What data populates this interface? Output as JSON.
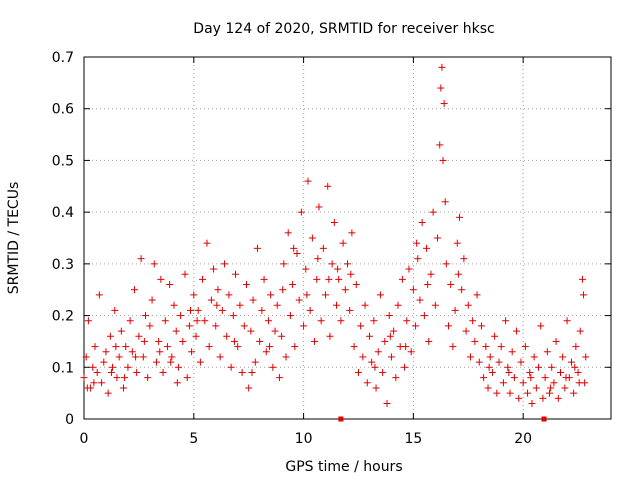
{
  "chart_data": {
    "type": "scatter",
    "title": "Day 124 of 2020, SRMTID for receiver hksc",
    "xlabel": "GPS time / hours",
    "ylabel": "SRMTID / TECUs",
    "xlim": [
      0,
      24
    ],
    "ylim": [
      0,
      0.7
    ],
    "xticks": [
      0,
      5,
      10,
      15,
      20
    ],
    "yticks": [
      0,
      0.1,
      0.2,
      0.3,
      0.4,
      0.5,
      0.6,
      0.7
    ],
    "grid": true,
    "marker": "+",
    "point_color": "#e00000",
    "axis_markers_x": [
      11.7,
      20.95
    ],
    "series": [
      {
        "name": "SRMTID",
        "points": [
          [
            0.0,
            0.08
          ],
          [
            0.1,
            0.12
          ],
          [
            0.2,
            0.19
          ],
          [
            0.3,
            0.06
          ],
          [
            0.4,
            0.1
          ],
          [
            0.5,
            0.14
          ],
          [
            0.6,
            0.09
          ],
          [
            0.7,
            0.24
          ],
          [
            0.8,
            0.07
          ],
          [
            0.9,
            0.11
          ],
          [
            1.0,
            0.13
          ],
          [
            1.1,
            0.05
          ],
          [
            1.2,
            0.16
          ],
          [
            1.3,
            0.1
          ],
          [
            1.4,
            0.21
          ],
          [
            1.5,
            0.08
          ],
          [
            1.6,
            0.12
          ],
          [
            1.7,
            0.17
          ],
          [
            1.8,
            0.06
          ],
          [
            1.9,
            0.14
          ],
          [
            2.0,
            0.1
          ],
          [
            2.1,
            0.19
          ],
          [
            2.2,
            0.13
          ],
          [
            2.3,
            0.25
          ],
          [
            2.4,
            0.09
          ],
          [
            2.5,
            0.16
          ],
          [
            2.6,
            0.31
          ],
          [
            2.7,
            0.12
          ],
          [
            2.8,
            0.2
          ],
          [
            2.9,
            0.08
          ],
          [
            3.0,
            0.18
          ],
          [
            3.1,
            0.23
          ],
          [
            3.2,
            0.3
          ],
          [
            3.3,
            0.11
          ],
          [
            3.4,
            0.15
          ],
          [
            3.5,
            0.27
          ],
          [
            3.6,
            0.09
          ],
          [
            3.7,
            0.19
          ],
          [
            3.8,
            0.14
          ],
          [
            3.9,
            0.26
          ],
          [
            4.0,
            0.12
          ],
          [
            4.1,
            0.22
          ],
          [
            4.2,
            0.17
          ],
          [
            4.3,
            0.1
          ],
          [
            4.4,
            0.2
          ],
          [
            4.5,
            0.15
          ],
          [
            4.6,
            0.28
          ],
          [
            4.7,
            0.08
          ],
          [
            4.8,
            0.18
          ],
          [
            4.9,
            0.13
          ],
          [
            5.0,
            0.24
          ],
          [
            5.1,
            0.16
          ],
          [
            5.2,
            0.21
          ],
          [
            5.3,
            0.11
          ],
          [
            5.4,
            0.27
          ],
          [
            5.5,
            0.19
          ],
          [
            5.6,
            0.34
          ],
          [
            5.7,
            0.14
          ],
          [
            5.8,
            0.23
          ],
          [
            5.9,
            0.29
          ],
          [
            6.0,
            0.18
          ],
          [
            6.1,
            0.25
          ],
          [
            6.2,
            0.12
          ],
          [
            6.3,
            0.21
          ],
          [
            6.4,
            0.3
          ],
          [
            6.5,
            0.16
          ],
          [
            6.6,
            0.24
          ],
          [
            6.7,
            0.1
          ],
          [
            6.8,
            0.2
          ],
          [
            6.9,
            0.28
          ],
          [
            7.0,
            0.14
          ],
          [
            7.1,
            0.22
          ],
          [
            7.2,
            0.09
          ],
          [
            7.3,
            0.18
          ],
          [
            7.4,
            0.26
          ],
          [
            7.5,
            0.06
          ],
          [
            7.6,
            0.17
          ],
          [
            7.7,
            0.23
          ],
          [
            7.8,
            0.11
          ],
          [
            7.9,
            0.33
          ],
          [
            8.0,
            0.15
          ],
          [
            8.1,
            0.21
          ],
          [
            8.2,
            0.27
          ],
          [
            8.3,
            0.13
          ],
          [
            8.4,
            0.19
          ],
          [
            8.5,
            0.24
          ],
          [
            8.6,
            0.1
          ],
          [
            8.7,
            0.17
          ],
          [
            8.8,
            0.22
          ],
          [
            8.9,
            0.08
          ],
          [
            9.0,
            0.16
          ],
          [
            9.1,
            0.3
          ],
          [
            9.2,
            0.12
          ],
          [
            9.3,
            0.36
          ],
          [
            9.4,
            0.2
          ],
          [
            9.5,
            0.26
          ],
          [
            9.6,
            0.14
          ],
          [
            9.7,
            0.32
          ],
          [
            9.8,
            0.23
          ],
          [
            9.9,
            0.4
          ],
          [
            10.0,
            0.18
          ],
          [
            10.1,
            0.29
          ],
          [
            10.2,
            0.46
          ],
          [
            10.3,
            0.21
          ],
          [
            10.4,
            0.35
          ],
          [
            10.5,
            0.15
          ],
          [
            10.6,
            0.27
          ],
          [
            10.7,
            0.41
          ],
          [
            10.8,
            0.19
          ],
          [
            10.9,
            0.33
          ],
          [
            11.0,
            0.24
          ],
          [
            11.1,
            0.45
          ],
          [
            11.2,
            0.16
          ],
          [
            11.3,
            0.3
          ],
          [
            11.4,
            0.38
          ],
          [
            11.5,
            0.22
          ],
          [
            11.6,
            0.27
          ],
          [
            11.7,
            0.19
          ],
          [
            11.8,
            0.34
          ],
          [
            11.9,
            0.25
          ],
          [
            12.0,
            0.3
          ],
          [
            12.1,
            0.21
          ],
          [
            12.2,
            0.36
          ],
          [
            12.3,
            0.14
          ],
          [
            12.4,
            0.26
          ],
          [
            12.5,
            0.09
          ],
          [
            12.6,
            0.18
          ],
          [
            12.7,
            0.12
          ],
          [
            12.8,
            0.22
          ],
          [
            12.9,
            0.07
          ],
          [
            13.0,
            0.16
          ],
          [
            13.1,
            0.11
          ],
          [
            13.2,
            0.19
          ],
          [
            13.3,
            0.06
          ],
          [
            13.4,
            0.13
          ],
          [
            13.5,
            0.24
          ],
          [
            13.6,
            0.09
          ],
          [
            13.7,
            0.15
          ],
          [
            13.8,
            0.03
          ],
          [
            13.9,
            0.2
          ],
          [
            14.0,
            0.12
          ],
          [
            14.1,
            0.17
          ],
          [
            14.2,
            0.08
          ],
          [
            14.3,
            0.22
          ],
          [
            14.4,
            0.14
          ],
          [
            14.5,
            0.27
          ],
          [
            14.6,
            0.1
          ],
          [
            14.7,
            0.19
          ],
          [
            14.8,
            0.29
          ],
          [
            14.9,
            0.13
          ],
          [
            15.0,
            0.25
          ],
          [
            15.1,
            0.18
          ],
          [
            15.2,
            0.31
          ],
          [
            15.3,
            0.23
          ],
          [
            15.4,
            0.38
          ],
          [
            15.5,
            0.2
          ],
          [
            15.6,
            0.33
          ],
          [
            15.7,
            0.15
          ],
          [
            15.8,
            0.28
          ],
          [
            15.9,
            0.4
          ],
          [
            16.0,
            0.22
          ],
          [
            16.1,
            0.35
          ],
          [
            16.2,
            0.53
          ],
          [
            16.25,
            0.64
          ],
          [
            16.3,
            0.68
          ],
          [
            16.35,
            0.5
          ],
          [
            16.4,
            0.61
          ],
          [
            16.45,
            0.42
          ],
          [
            16.5,
            0.3
          ],
          [
            16.6,
            0.18
          ],
          [
            16.7,
            0.26
          ],
          [
            16.8,
            0.14
          ],
          [
            16.9,
            0.21
          ],
          [
            17.0,
            0.34
          ],
          [
            17.1,
            0.39
          ],
          [
            17.2,
            0.25
          ],
          [
            17.3,
            0.31
          ],
          [
            17.4,
            0.17
          ],
          [
            17.5,
            0.22
          ],
          [
            17.6,
            0.12
          ],
          [
            17.7,
            0.19
          ],
          [
            17.8,
            0.15
          ],
          [
            17.9,
            0.24
          ],
          [
            18.0,
            0.11
          ],
          [
            18.1,
            0.18
          ],
          [
            18.2,
            0.08
          ],
          [
            18.3,
            0.14
          ],
          [
            18.4,
            0.06
          ],
          [
            18.5,
            0.12
          ],
          [
            18.6,
            0.09
          ],
          [
            18.7,
            0.16
          ],
          [
            18.8,
            0.05
          ],
          [
            18.9,
            0.11
          ],
          [
            19.0,
            0.14
          ],
          [
            19.1,
            0.07
          ],
          [
            19.2,
            0.19
          ],
          [
            19.3,
            0.1
          ],
          [
            19.4,
            0.05
          ],
          [
            19.5,
            0.13
          ],
          [
            19.6,
            0.08
          ],
          [
            19.7,
            0.17
          ],
          [
            19.8,
            0.04
          ],
          [
            19.9,
            0.11
          ],
          [
            20.0,
            0.07
          ],
          [
            20.1,
            0.14
          ],
          [
            20.2,
            0.05
          ],
          [
            20.3,
            0.09
          ],
          [
            20.4,
            0.03
          ],
          [
            20.5,
            0.12
          ],
          [
            20.6,
            0.06
          ],
          [
            20.7,
            0.1
          ],
          [
            20.8,
            0.18
          ],
          [
            20.9,
            0.04
          ],
          [
            21.0,
            0.08
          ],
          [
            21.1,
            0.13
          ],
          [
            21.2,
            0.05
          ],
          [
            21.3,
            0.1
          ],
          [
            21.4,
            0.07
          ],
          [
            21.5,
            0.15
          ],
          [
            21.6,
            0.04
          ],
          [
            21.7,
            0.09
          ],
          [
            21.8,
            0.12
          ],
          [
            21.9,
            0.06
          ],
          [
            22.0,
            0.19
          ],
          [
            22.1,
            0.08
          ],
          [
            22.2,
            0.11
          ],
          [
            22.3,
            0.05
          ],
          [
            22.4,
            0.14
          ],
          [
            22.5,
            0.09
          ],
          [
            22.6,
            0.17
          ],
          [
            22.7,
            0.27
          ],
          [
            22.75,
            0.24
          ],
          [
            22.8,
            0.07
          ],
          [
            22.85,
            0.12
          ],
          [
            0.15,
            0.06
          ],
          [
            0.45,
            0.07
          ],
          [
            1.25,
            0.09
          ],
          [
            1.85,
            0.08
          ],
          [
            2.75,
            0.15
          ],
          [
            3.45,
            0.13
          ],
          [
            4.25,
            0.07
          ],
          [
            5.15,
            0.19
          ],
          [
            6.05,
            0.22
          ],
          [
            6.85,
            0.15
          ],
          [
            7.65,
            0.09
          ],
          [
            8.45,
            0.14
          ],
          [
            9.05,
            0.25
          ],
          [
            9.55,
            0.33
          ],
          [
            10.15,
            0.24
          ],
          [
            10.65,
            0.31
          ],
          [
            11.15,
            0.27
          ],
          [
            11.55,
            0.29
          ],
          [
            12.15,
            0.28
          ],
          [
            13.25,
            0.1
          ],
          [
            13.95,
            0.16
          ],
          [
            14.65,
            0.14
          ],
          [
            15.15,
            0.34
          ],
          [
            15.65,
            0.26
          ],
          [
            17.05,
            0.28
          ],
          [
            18.45,
            0.1
          ],
          [
            19.35,
            0.09
          ],
          [
            20.35,
            0.08
          ],
          [
            21.25,
            0.06
          ],
          [
            21.95,
            0.08
          ],
          [
            22.35,
            0.1
          ],
          [
            22.55,
            0.07
          ],
          [
            4.85,
            0.21
          ],
          [
            3.95,
            0.11
          ],
          [
            2.35,
            0.12
          ],
          [
            1.45,
            0.14
          ]
        ]
      }
    ]
  }
}
